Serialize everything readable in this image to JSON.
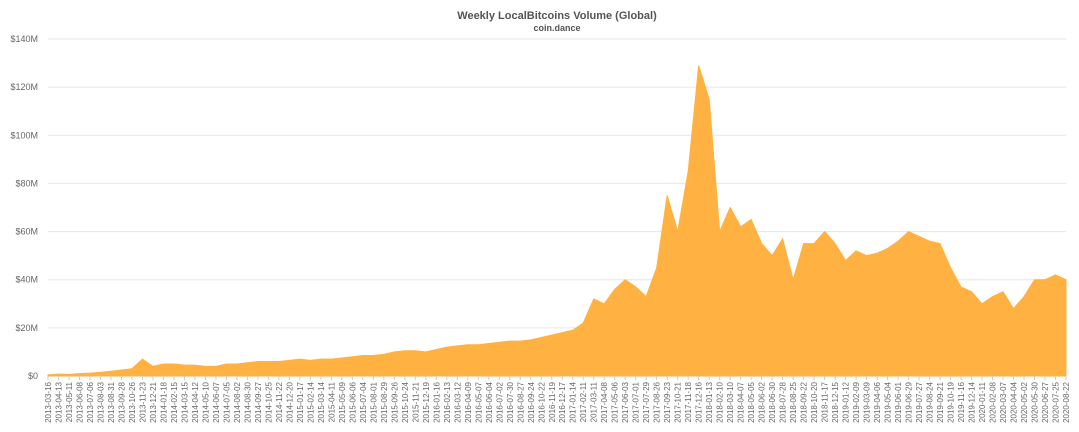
{
  "chart_data": {
    "type": "area",
    "title": "Weekly LocalBitcoins Volume (Global)",
    "subtitle": "coin.dance",
    "color": "#ffb142",
    "grid": true,
    "categories": [
      "2013-03-16",
      "2013-04-13",
      "2013-05-11",
      "2013-06-08",
      "2013-07-06",
      "2013-08-03",
      "2013-08-31",
      "2013-09-28",
      "2013-10-26",
      "2013-11-23",
      "2013-12-21",
      "2014-01-18",
      "2014-02-15",
      "2014-03-15",
      "2014-04-12",
      "2014-05-10",
      "2014-06-07",
      "2014-07-05",
      "2014-08-02",
      "2014-08-30",
      "2014-09-27",
      "2014-10-25",
      "2014-11-22",
      "2014-12-20",
      "2015-01-17",
      "2015-02-14",
      "2015-03-14",
      "2015-04-11",
      "2015-05-09",
      "2015-06-06",
      "2015-07-04",
      "2015-08-01",
      "2015-08-29",
      "2015-09-26",
      "2015-10-24",
      "2015-11-21",
      "2015-12-19",
      "2016-01-16",
      "2016-02-13",
      "2016-03-12",
      "2016-04-09",
      "2016-05-07",
      "2016-06-04",
      "2016-07-02",
      "2016-07-30",
      "2016-08-27",
      "2016-09-24",
      "2016-10-22",
      "2016-11-19",
      "2016-12-17",
      "2017-01-14",
      "2017-02-11",
      "2017-03-11",
      "2017-04-08",
      "2017-05-06",
      "2017-06-03",
      "2017-07-01",
      "2017-07-29",
      "2017-08-26",
      "2017-09-23",
      "2017-10-21",
      "2017-11-18",
      "2017-12-16",
      "2018-01-13",
      "2018-02-10",
      "2018-03-10",
      "2018-04-07",
      "2018-05-05",
      "2018-06-02",
      "2018-06-30",
      "2018-07-28",
      "2018-08-25",
      "2018-09-22",
      "2018-10-20",
      "2018-11-17",
      "2018-12-15",
      "2019-01-12",
      "2019-02-09",
      "2019-03-09",
      "2019-04-06",
      "2019-05-04",
      "2019-06-01",
      "2019-06-29",
      "2019-07-27",
      "2019-08-24",
      "2019-09-21",
      "2019-10-19",
      "2019-11-16",
      "2019-12-14",
      "2020-01-11",
      "2020-02-08",
      "2020-03-07",
      "2020-04-04",
      "2020-05-02",
      "2020-05-30",
      "2020-06-27",
      "2020-07-25",
      "2020-08-22"
    ],
    "values": [
      500000,
      800000,
      700000,
      1000000,
      1200000,
      1500000,
      2000000,
      2500000,
      3000000,
      7000000,
      4000000,
      5000000,
      5000000,
      4500000,
      4500000,
      4000000,
      4000000,
      5000000,
      5000000,
      5500000,
      6000000,
      6000000,
      6000000,
      6500000,
      7000000,
      6500000,
      7000000,
      7000000,
      7500000,
      8000000,
      8500000,
      8500000,
      9000000,
      10000000,
      10500000,
      10500000,
      10000000,
      11000000,
      12000000,
      12500000,
      13000000,
      13000000,
      13500000,
      14000000,
      14500000,
      14500000,
      15000000,
      16000000,
      17000000,
      18000000,
      19000000,
      22000000,
      32000000,
      30000000,
      36000000,
      40000000,
      37000000,
      33000000,
      45000000,
      75000000,
      60000000,
      85000000,
      129000000,
      115000000,
      60000000,
      70000000,
      62000000,
      65000000,
      55000000,
      50000000,
      57000000,
      40000000,
      55000000,
      55000000,
      60000000,
      55000000,
      48000000,
      52000000,
      50000000,
      51000000,
      53000000,
      56000000,
      60000000,
      58000000,
      56000000,
      55000000,
      45000000,
      37000000,
      35000000,
      30000000,
      33000000,
      35000000,
      28000000,
      33000000,
      40000000,
      40000000,
      42000000,
      40000000
    ],
    "ylim": [
      0,
      140000000
    ],
    "yticks": [
      {
        "value": 0,
        "label": "$0"
      },
      {
        "value": 20000000,
        "label": "$20M"
      },
      {
        "value": 40000000,
        "label": "$40M"
      },
      {
        "value": 60000000,
        "label": "$60M"
      },
      {
        "value": 80000000,
        "label": "$80M"
      },
      {
        "value": 100000000,
        "label": "$100M"
      },
      {
        "value": 120000000,
        "label": "$120M"
      },
      {
        "value": 140000000,
        "label": "$140M"
      }
    ]
  }
}
